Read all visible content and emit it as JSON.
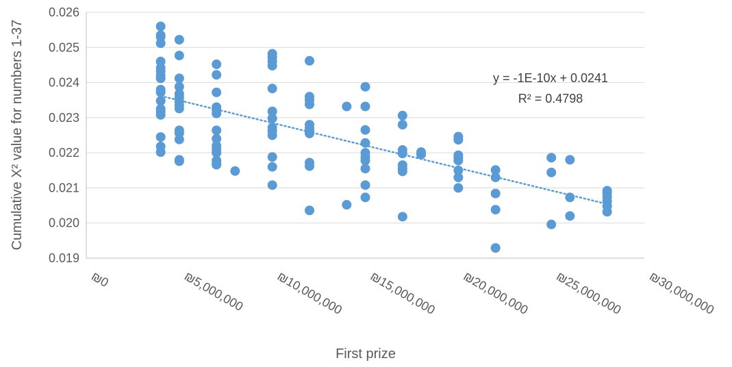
{
  "chart_data": {
    "type": "scatter",
    "xlabel": "First prize",
    "ylabel": "Cumulative X² value for numbers 1-37",
    "xlim": [
      0,
      30000000
    ],
    "ylim": [
      0.019,
      0.026
    ],
    "x_ticks": [
      "₪0",
      "₪5,000,000",
      "₪10,000,000",
      "₪15,000,000",
      "₪20,000,000",
      "₪25,000,000",
      "₪30,000,000"
    ],
    "x_tick_values": [
      0,
      5000000,
      10000000,
      15000000,
      20000000,
      25000000,
      30000000
    ],
    "y_ticks": [
      "0.019",
      "0.020",
      "0.021",
      "0.022",
      "0.023",
      "0.024",
      "0.025",
      "0.026"
    ],
    "y_tick_values": [
      0.019,
      0.02,
      0.021,
      0.022,
      0.023,
      0.024,
      0.025,
      0.026
    ],
    "grid": "horizontal",
    "marker_color": "#5B9BD5",
    "trendline": {
      "type": "linear",
      "style": "dotted",
      "color": "#5B9BD5",
      "x_range": [
        4000000,
        28000000
      ],
      "y_range": [
        0.02362,
        0.02054
      ],
      "equation": "y = -1E-10x + 0.0241",
      "r_squared": "R² = 0.4798"
    },
    "points": [
      {
        "x": 4000000,
        "y": 0.0256
      },
      {
        "x": 4000000,
        "y": 0.02535
      },
      {
        "x": 4000000,
        "y": 0.0253
      },
      {
        "x": 4000000,
        "y": 0.02512
      },
      {
        "x": 4000000,
        "y": 0.0246
      },
      {
        "x": 4000000,
        "y": 0.02442
      },
      {
        "x": 4000000,
        "y": 0.02432
      },
      {
        "x": 4000000,
        "y": 0.0242
      },
      {
        "x": 4000000,
        "y": 0.02412
      },
      {
        "x": 4000000,
        "y": 0.0238
      },
      {
        "x": 4000000,
        "y": 0.02372
      },
      {
        "x": 4000000,
        "y": 0.02348
      },
      {
        "x": 4000000,
        "y": 0.02325
      },
      {
        "x": 4000000,
        "y": 0.02318
      },
      {
        "x": 4000000,
        "y": 0.02308
      },
      {
        "x": 4000000,
        "y": 0.02245
      },
      {
        "x": 4000000,
        "y": 0.02218
      },
      {
        "x": 4000000,
        "y": 0.02202
      },
      {
        "x": 5000000,
        "y": 0.02522
      },
      {
        "x": 5000000,
        "y": 0.02477
      },
      {
        "x": 5000000,
        "y": 0.02412
      },
      {
        "x": 5000000,
        "y": 0.02388
      },
      {
        "x": 5000000,
        "y": 0.02368
      },
      {
        "x": 5000000,
        "y": 0.02358
      },
      {
        "x": 5000000,
        "y": 0.02346
      },
      {
        "x": 5000000,
        "y": 0.02336
      },
      {
        "x": 5000000,
        "y": 0.02326
      },
      {
        "x": 5000000,
        "y": 0.02264
      },
      {
        "x": 5000000,
        "y": 0.02256
      },
      {
        "x": 5000000,
        "y": 0.02238
      },
      {
        "x": 5000000,
        "y": 0.0218
      },
      {
        "x": 5000000,
        "y": 0.02176
      },
      {
        "x": 7000000,
        "y": 0.02452
      },
      {
        "x": 7000000,
        "y": 0.02422
      },
      {
        "x": 7000000,
        "y": 0.02372
      },
      {
        "x": 7000000,
        "y": 0.0233
      },
      {
        "x": 7000000,
        "y": 0.02322
      },
      {
        "x": 7000000,
        "y": 0.02312
      },
      {
        "x": 7000000,
        "y": 0.02264
      },
      {
        "x": 7000000,
        "y": 0.0224
      },
      {
        "x": 7000000,
        "y": 0.0222
      },
      {
        "x": 7000000,
        "y": 0.0221
      },
      {
        "x": 7000000,
        "y": 0.022
      },
      {
        "x": 7000000,
        "y": 0.02178
      },
      {
        "x": 7000000,
        "y": 0.0217
      },
      {
        "x": 7000000,
        "y": 0.02166
      },
      {
        "x": 8000000,
        "y": 0.02148
      },
      {
        "x": 10000000,
        "y": 0.02482
      },
      {
        "x": 10000000,
        "y": 0.02472
      },
      {
        "x": 10000000,
        "y": 0.0246
      },
      {
        "x": 10000000,
        "y": 0.02448
      },
      {
        "x": 10000000,
        "y": 0.02383
      },
      {
        "x": 10000000,
        "y": 0.02318
      },
      {
        "x": 10000000,
        "y": 0.02298
      },
      {
        "x": 10000000,
        "y": 0.02272
      },
      {
        "x": 10000000,
        "y": 0.02262
      },
      {
        "x": 10000000,
        "y": 0.0225
      },
      {
        "x": 10000000,
        "y": 0.02188
      },
      {
        "x": 10000000,
        "y": 0.0216
      },
      {
        "x": 10000000,
        "y": 0.02108
      },
      {
        "x": 12000000,
        "y": 0.02462
      },
      {
        "x": 12000000,
        "y": 0.0236
      },
      {
        "x": 12000000,
        "y": 0.0235
      },
      {
        "x": 12000000,
        "y": 0.02338
      },
      {
        "x": 12000000,
        "y": 0.0228
      },
      {
        "x": 12000000,
        "y": 0.0227
      },
      {
        "x": 12000000,
        "y": 0.02262
      },
      {
        "x": 12000000,
        "y": 0.02255
      },
      {
        "x": 12000000,
        "y": 0.02172
      },
      {
        "x": 12000000,
        "y": 0.02162
      },
      {
        "x": 12000000,
        "y": 0.02036
      },
      {
        "x": 14000000,
        "y": 0.02332
      },
      {
        "x": 14000000,
        "y": 0.02052
      },
      {
        "x": 15000000,
        "y": 0.02388
      },
      {
        "x": 15000000,
        "y": 0.02332
      },
      {
        "x": 15000000,
        "y": 0.02265
      },
      {
        "x": 15000000,
        "y": 0.02228
      },
      {
        "x": 15000000,
        "y": 0.022
      },
      {
        "x": 15000000,
        "y": 0.02188
      },
      {
        "x": 15000000,
        "y": 0.02178
      },
      {
        "x": 15000000,
        "y": 0.02155
      },
      {
        "x": 15000000,
        "y": 0.02108
      },
      {
        "x": 15000000,
        "y": 0.02073
      },
      {
        "x": 17000000,
        "y": 0.02306
      },
      {
        "x": 17000000,
        "y": 0.0228
      },
      {
        "x": 17000000,
        "y": 0.02208
      },
      {
        "x": 17000000,
        "y": 0.02198
      },
      {
        "x": 17000000,
        "y": 0.02165
      },
      {
        "x": 17000000,
        "y": 0.02155
      },
      {
        "x": 17000000,
        "y": 0.02147
      },
      {
        "x": 17000000,
        "y": 0.02018
      },
      {
        "x": 18000000,
        "y": 0.02202
      },
      {
        "x": 18000000,
        "y": 0.02195
      },
      {
        "x": 20000000,
        "y": 0.02246
      },
      {
        "x": 20000000,
        "y": 0.02237
      },
      {
        "x": 20000000,
        "y": 0.02193
      },
      {
        "x": 20000000,
        "y": 0.02186
      },
      {
        "x": 20000000,
        "y": 0.02178
      },
      {
        "x": 20000000,
        "y": 0.0215
      },
      {
        "x": 20000000,
        "y": 0.0213
      },
      {
        "x": 20000000,
        "y": 0.021
      },
      {
        "x": 22000000,
        "y": 0.02151
      },
      {
        "x": 22000000,
        "y": 0.0213
      },
      {
        "x": 22000000,
        "y": 0.02084
      },
      {
        "x": 22000000,
        "y": 0.02038
      },
      {
        "x": 22000000,
        "y": 0.01929
      },
      {
        "x": 25000000,
        "y": 0.02186
      },
      {
        "x": 25000000,
        "y": 0.02144
      },
      {
        "x": 25000000,
        "y": 0.01996
      },
      {
        "x": 26000000,
        "y": 0.0218
      },
      {
        "x": 26000000,
        "y": 0.02073
      },
      {
        "x": 26000000,
        "y": 0.0202
      },
      {
        "x": 28000000,
        "y": 0.02092
      },
      {
        "x": 28000000,
        "y": 0.02084
      },
      {
        "x": 28000000,
        "y": 0.02074
      },
      {
        "x": 28000000,
        "y": 0.02062
      },
      {
        "x": 28000000,
        "y": 0.02048
      },
      {
        "x": 28000000,
        "y": 0.02032
      }
    ]
  }
}
